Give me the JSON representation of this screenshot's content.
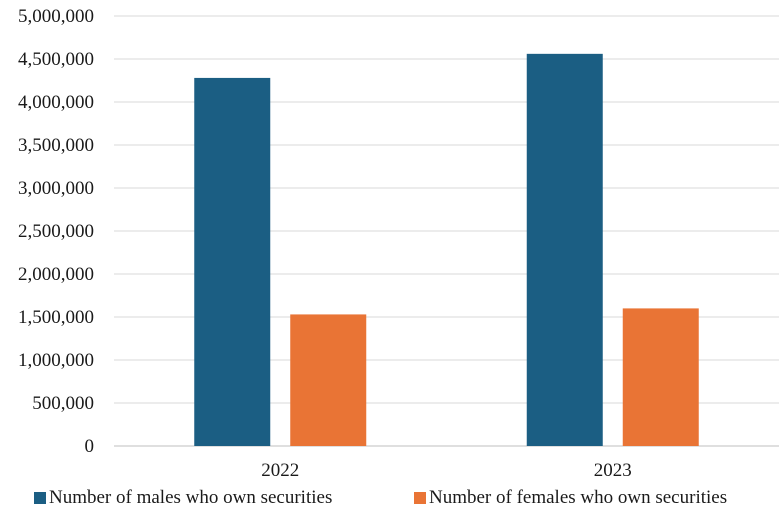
{
  "chart_data": {
    "type": "bar",
    "categories": [
      "2022",
      "2023"
    ],
    "series": [
      {
        "name": "Number of males who own securities",
        "values": [
          4280000,
          4560000
        ],
        "color": "#1b5e83"
      },
      {
        "name": "Number of females who own securities",
        "values": [
          1530000,
          1600000
        ],
        "color": "#e97435"
      }
    ],
    "ylim": [
      0,
      5000000
    ],
    "yticks": [
      0,
      500000,
      1000000,
      1500000,
      2000000,
      2500000,
      3000000,
      3500000,
      4000000,
      4500000,
      5000000
    ],
    "ytick_labels": [
      "0",
      "500,000",
      "1,000,000",
      "1,500,000",
      "2,000,000",
      "2,500,000",
      "3,000,000",
      "3,500,000",
      "4,000,000",
      "4,500,000",
      "5,000,000"
    ],
    "grid": true,
    "legend_position": "bottom"
  }
}
